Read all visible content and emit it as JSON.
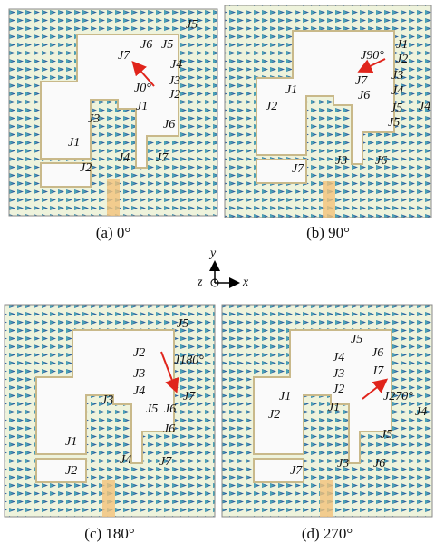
{
  "panels": [
    {
      "caption": "(a) 0°",
      "labels": [
        "J5",
        "J6",
        "J5",
        "J7",
        "J4",
        "J3",
        "J0°",
        "J2",
        "J1",
        "J3",
        "J6",
        "J1",
        "J4",
        "J7",
        "J2"
      ]
    },
    {
      "caption": "(b) 90°",
      "labels": [
        "J1",
        "J90°",
        "J2",
        "J1",
        "J7",
        "J3",
        "J2",
        "J6",
        "J4",
        "J5",
        "J4",
        "J5",
        "J7",
        "J3",
        "J6"
      ]
    },
    {
      "caption": "(c) 180°",
      "labels": [
        "J5",
        "J2",
        "J180°",
        "J3",
        "J4",
        "J7",
        "J5",
        "J6",
        "J3",
        "J6",
        "J4",
        "J7",
        "J1",
        "J2"
      ]
    },
    {
      "caption": "(d) 270°",
      "labels": [
        "J5",
        "J4",
        "J6",
        "J3",
        "J7",
        "J2",
        "J270°",
        "J1",
        "J1",
        "J2",
        "J4",
        "J5",
        "J3",
        "J6",
        "J7"
      ]
    }
  ],
  "axes": {
    "y": "y",
    "z": "z",
    "x": "x"
  }
}
